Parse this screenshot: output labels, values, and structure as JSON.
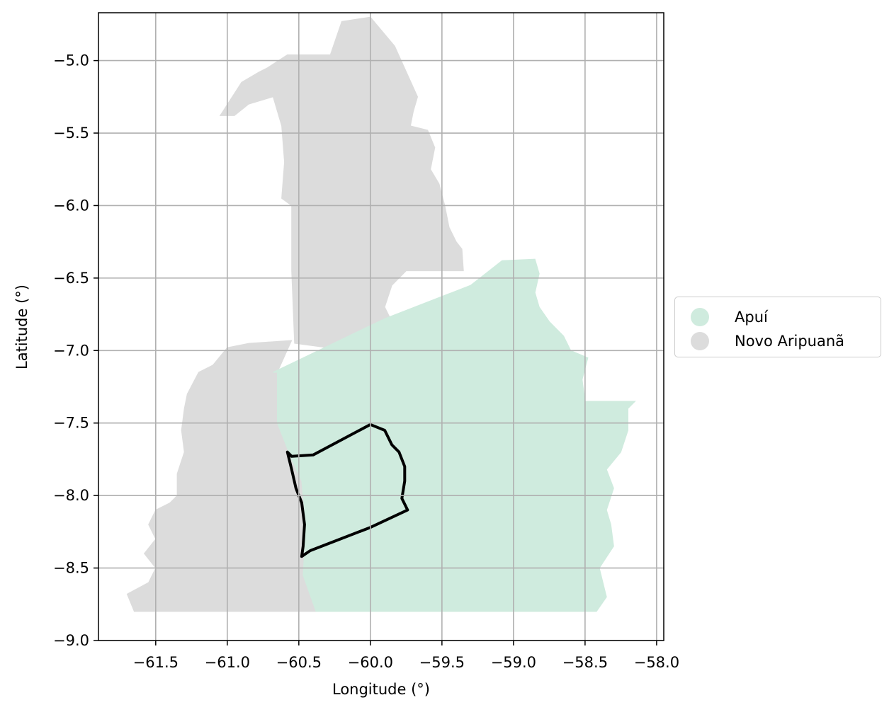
{
  "chart_data": {
    "type": "map",
    "xlabel": "Longitude (°)",
    "ylabel": "Latitude (°)",
    "xlim": [
      -61.9,
      -57.95
    ],
    "ylim": [
      -9.0,
      -4.67
    ],
    "xticks": [
      -61.5,
      -61.0,
      -60.5,
      -60.0,
      -59.5,
      -59.0,
      -58.5,
      -58.0
    ],
    "yticks": [
      -5.0,
      -5.5,
      -6.0,
      -6.5,
      -7.0,
      -7.5,
      -8.0,
      -8.5,
      -9.0
    ],
    "grid": true,
    "legend_position": "right",
    "regions": [
      {
        "name": "Novo Aripuanã",
        "color": "#dcdcdc",
        "polygon": [
          [
            -60.72,
            -5.05
          ],
          [
            -60.58,
            -4.96
          ],
          [
            -60.28,
            -4.96
          ],
          [
            -60.2,
            -4.73
          ],
          [
            -60.0,
            -4.7
          ],
          [
            -59.83,
            -4.9
          ],
          [
            -59.67,
            -5.25
          ],
          [
            -59.7,
            -5.35
          ],
          [
            -59.72,
            -5.45
          ],
          [
            -59.6,
            -5.48
          ],
          [
            -59.55,
            -5.6
          ],
          [
            -59.58,
            -5.75
          ],
          [
            -59.52,
            -5.85
          ],
          [
            -59.48,
            -6.0
          ],
          [
            -59.45,
            -6.15
          ],
          [
            -59.4,
            -6.25
          ],
          [
            -59.36,
            -6.3
          ],
          [
            -59.35,
            -6.45
          ],
          [
            -59.6,
            -6.45
          ],
          [
            -59.75,
            -6.45
          ],
          [
            -59.85,
            -6.55
          ],
          [
            -59.9,
            -6.7
          ],
          [
            -59.85,
            -6.8
          ],
          [
            -59.88,
            -6.95
          ],
          [
            -59.85,
            -7.0
          ],
          [
            -60.3,
            -6.98
          ],
          [
            -60.53,
            -6.95
          ],
          [
            -60.55,
            -6.45
          ],
          [
            -60.55,
            -6.0
          ],
          [
            -60.62,
            -5.95
          ],
          [
            -60.6,
            -5.7
          ],
          [
            -60.62,
            -5.45
          ],
          [
            -60.68,
            -5.25
          ],
          [
            -60.85,
            -5.3
          ],
          [
            -60.95,
            -5.38
          ],
          [
            -61.05,
            -5.38
          ],
          [
            -60.9,
            -5.15
          ],
          [
            -60.78,
            -5.08
          ]
        ]
      },
      {
        "name": "Novo Aripuanã",
        "color": "#dcdcdc",
        "polygon": [
          [
            -60.55,
            -6.93
          ],
          [
            -60.85,
            -6.95
          ],
          [
            -61.0,
            -6.98
          ],
          [
            -61.1,
            -7.1
          ],
          [
            -61.2,
            -7.15
          ],
          [
            -61.28,
            -7.3
          ],
          [
            -61.3,
            -7.4
          ],
          [
            -61.32,
            -7.55
          ],
          [
            -61.3,
            -7.7
          ],
          [
            -61.35,
            -7.85
          ],
          [
            -61.35,
            -8.0
          ],
          [
            -61.4,
            -8.05
          ],
          [
            -61.5,
            -8.1
          ],
          [
            -61.55,
            -8.2
          ],
          [
            -61.5,
            -8.3
          ],
          [
            -61.58,
            -8.4
          ],
          [
            -61.5,
            -8.5
          ],
          [
            -61.55,
            -8.6
          ],
          [
            -61.7,
            -8.68
          ],
          [
            -61.65,
            -8.8
          ],
          [
            -60.38,
            -8.8
          ],
          [
            -60.47,
            -8.55
          ],
          [
            -60.45,
            -8.2
          ],
          [
            -60.48,
            -7.9
          ],
          [
            -60.55,
            -7.75
          ],
          [
            -60.65,
            -7.5
          ],
          [
            -60.65,
            -7.15
          ]
        ]
      },
      {
        "name": "Apuí",
        "color": "#cfebde",
        "polygon": [
          [
            -60.68,
            -7.15
          ],
          [
            -59.9,
            -6.78
          ],
          [
            -59.3,
            -6.55
          ],
          [
            -59.08,
            -6.38
          ],
          [
            -58.85,
            -6.37
          ],
          [
            -58.82,
            -6.47
          ],
          [
            -58.85,
            -6.6
          ],
          [
            -58.82,
            -6.7
          ],
          [
            -58.75,
            -6.8
          ],
          [
            -58.65,
            -6.9
          ],
          [
            -58.6,
            -7.0
          ],
          [
            -58.48,
            -7.05
          ],
          [
            -58.52,
            -7.2
          ],
          [
            -58.5,
            -7.35
          ],
          [
            -58.3,
            -7.35
          ],
          [
            -58.15,
            -7.35
          ],
          [
            -58.2,
            -7.4
          ],
          [
            -58.2,
            -7.55
          ],
          [
            -58.25,
            -7.7
          ],
          [
            -58.35,
            -7.82
          ],
          [
            -58.3,
            -7.95
          ],
          [
            -58.35,
            -8.1
          ],
          [
            -58.32,
            -8.2
          ],
          [
            -58.3,
            -8.35
          ],
          [
            -58.4,
            -8.5
          ],
          [
            -58.35,
            -8.7
          ],
          [
            -58.42,
            -8.8
          ],
          [
            -59.2,
            -8.8
          ],
          [
            -60.38,
            -8.8
          ],
          [
            -60.47,
            -8.55
          ],
          [
            -60.45,
            -8.2
          ],
          [
            -60.48,
            -7.9
          ],
          [
            -60.55,
            -7.75
          ],
          [
            -60.65,
            -7.5
          ],
          [
            -60.65,
            -7.15
          ]
        ]
      }
    ],
    "outline": {
      "color": "#000000",
      "polygon": [
        [
          -60.58,
          -7.7
        ],
        [
          -60.55,
          -7.82
        ],
        [
          -60.52,
          -7.95
        ],
        [
          -60.48,
          -8.05
        ],
        [
          -60.46,
          -8.2
        ],
        [
          -60.47,
          -8.35
        ],
        [
          -60.48,
          -8.42
        ],
        [
          -60.42,
          -8.38
        ],
        [
          -60.0,
          -8.22
        ],
        [
          -59.74,
          -8.1
        ],
        [
          -59.78,
          -8.02
        ],
        [
          -59.76,
          -7.9
        ],
        [
          -59.76,
          -7.8
        ],
        [
          -59.8,
          -7.7
        ],
        [
          -59.85,
          -7.65
        ],
        [
          -59.9,
          -7.55
        ],
        [
          -60.0,
          -7.51
        ],
        [
          -60.4,
          -7.72
        ],
        [
          -60.55,
          -7.73
        ]
      ]
    },
    "legend": [
      {
        "name": "Apuí",
        "color": "#cfebde"
      },
      {
        "name": "Novo Aripuanã",
        "color": "#dcdcdc"
      }
    ]
  }
}
